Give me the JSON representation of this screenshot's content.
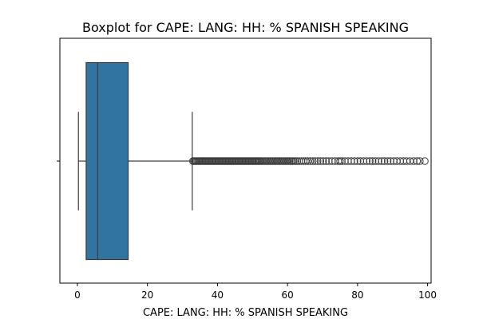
{
  "chart_data": {
    "type": "boxplot",
    "title": "Boxplot for CAPE: LANG: HH: % SPANISH SPEAKING",
    "xlabel": "CAPE: LANG: HH: % SPANISH SPEAKING",
    "ylabel": "",
    "xlim": [
      -5,
      101
    ],
    "xticks": [
      0,
      20,
      40,
      60,
      80,
      100
    ],
    "xtick_labels": [
      "0",
      "20",
      "40",
      "60",
      "80",
      "100"
    ],
    "grid": false,
    "legend": "none",
    "box": {
      "whisker_low": 0.3,
      "q1": 2.5,
      "median": 5.8,
      "q3": 14.5,
      "whisker_high": 32.8
    },
    "outliers": [
      33.0,
      33.3,
      33.6,
      33.9,
      34.2,
      34.5,
      34.8,
      35.1,
      35.4,
      35.7,
      36.0,
      36.3,
      36.6,
      36.9,
      37.2,
      37.5,
      37.8,
      38.1,
      38.4,
      38.7,
      39.0,
      39.3,
      39.6,
      39.9,
      40.2,
      40.5,
      40.8,
      41.1,
      41.4,
      41.7,
      42.0,
      42.3,
      42.6,
      42.9,
      43.2,
      43.5,
      43.8,
      44.1,
      44.4,
      44.7,
      45.0,
      45.3,
      45.6,
      45.9,
      46.2,
      46.5,
      46.8,
      47.1,
      47.4,
      47.7,
      48.0,
      48.3,
      48.6,
      48.9,
      49.2,
      49.5,
      49.8,
      50.1,
      50.4,
      50.7,
      51.0,
      51.3,
      51.6,
      51.9,
      52.2,
      52.6,
      53.0,
      53.4,
      53.8,
      54.2,
      54.6,
      55.0,
      55.4,
      55.8,
      56.2,
      56.6,
      57.0,
      57.4,
      57.8,
      58.2,
      58.6,
      59.0,
      59.4,
      59.8,
      60.2,
      60.6,
      61.0,
      61.4,
      61.8,
      62.3,
      62.8,
      63.4,
      64.0,
      64.6,
      65.2,
      65.8,
      66.5,
      67.2,
      67.9,
      68.6,
      69.4,
      70.2,
      71.0,
      71.8,
      72.7,
      73.6,
      74.5,
      75.0,
      75.5,
      76.4,
      77.3,
      78.2,
      79.1,
      80.0,
      80.8,
      81.7,
      82.6,
      83.5,
      84.3,
      85.1,
      86.0,
      86.9,
      87.7,
      88.6,
      89.4,
      90.3,
      91.2,
      92.2,
      93.1,
      94.0,
      95.0,
      96.0,
      97.0,
      97.8,
      99.2
    ],
    "box_color": "#3274a1",
    "outline_color": "#3d3d3d"
  }
}
